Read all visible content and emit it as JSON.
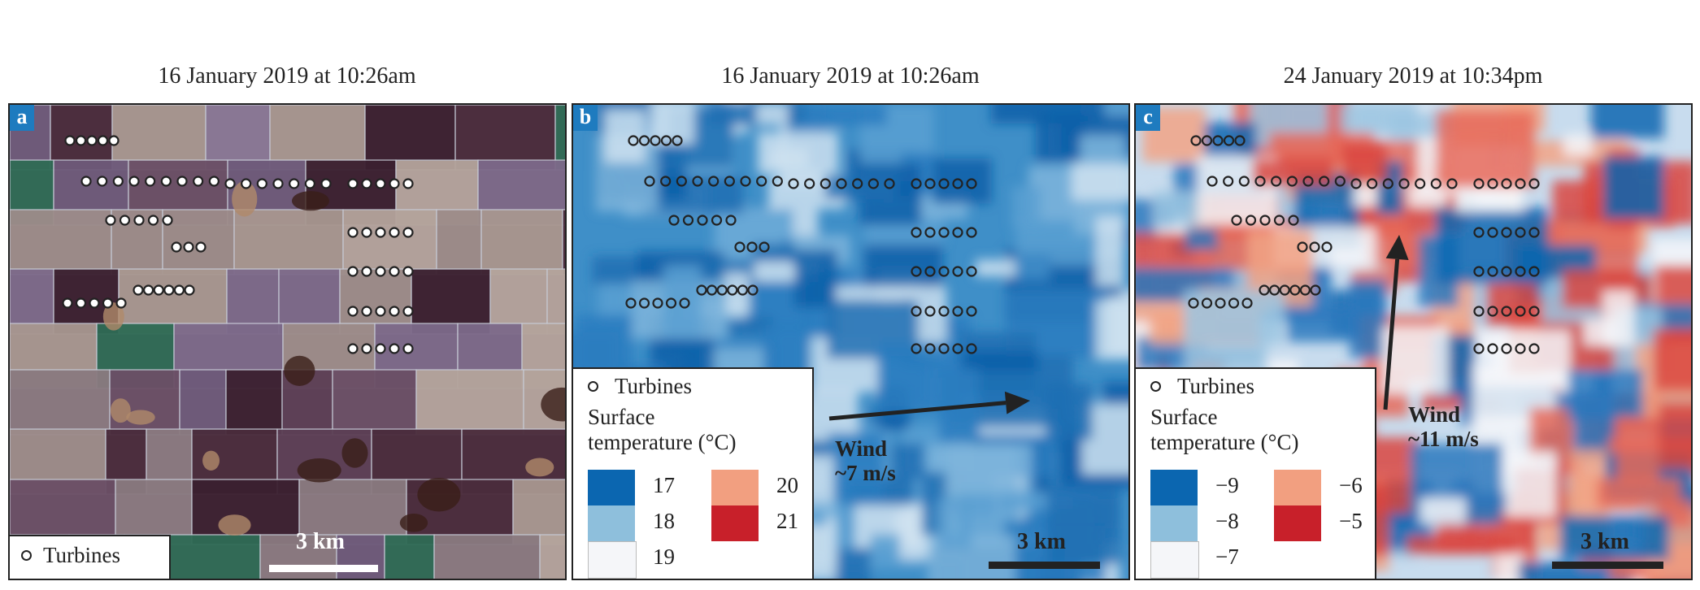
{
  "panels": [
    {
      "letter": "a",
      "title": "16 January 2019 at 10:26am",
      "legend": {
        "turbines": "Turbines"
      },
      "scale_label": "3 km"
    },
    {
      "letter": "b",
      "title": "16 January 2019 at 10:26am",
      "legend": {
        "turbines": "Turbines",
        "heading_line1": "Surface",
        "heading_line2": "temperature (°C)",
        "entries": [
          {
            "label": "17",
            "color": "#0b66b0"
          },
          {
            "label": "18",
            "color": "#8ebfdc"
          },
          {
            "label": "19",
            "color": "#f5f6f9"
          },
          {
            "label": "20",
            "color": "#f29f80"
          },
          {
            "label": "21",
            "color": "#c8202a"
          }
        ]
      },
      "wind": {
        "label": "Wind",
        "speed": "~7 m/s"
      },
      "scale_label": "3 km"
    },
    {
      "letter": "c",
      "title": "24 January 2019 at 10:34pm",
      "legend": {
        "turbines": "Turbines",
        "heading_line1": "Surface",
        "heading_line2": "temperature (°C)",
        "entries": [
          {
            "label": "−9",
            "color": "#0b66b0"
          },
          {
            "label": "−8",
            "color": "#8ebfdc"
          },
          {
            "label": "−7",
            "color": "#f5f6f9"
          },
          {
            "label": "−6",
            "color": "#f29f80"
          },
          {
            "label": "−5",
            "color": "#c8202a"
          }
        ]
      },
      "wind": {
        "label": "Wind",
        "speed": "~11 m/s"
      },
      "scale_label": "3 km"
    }
  ]
}
